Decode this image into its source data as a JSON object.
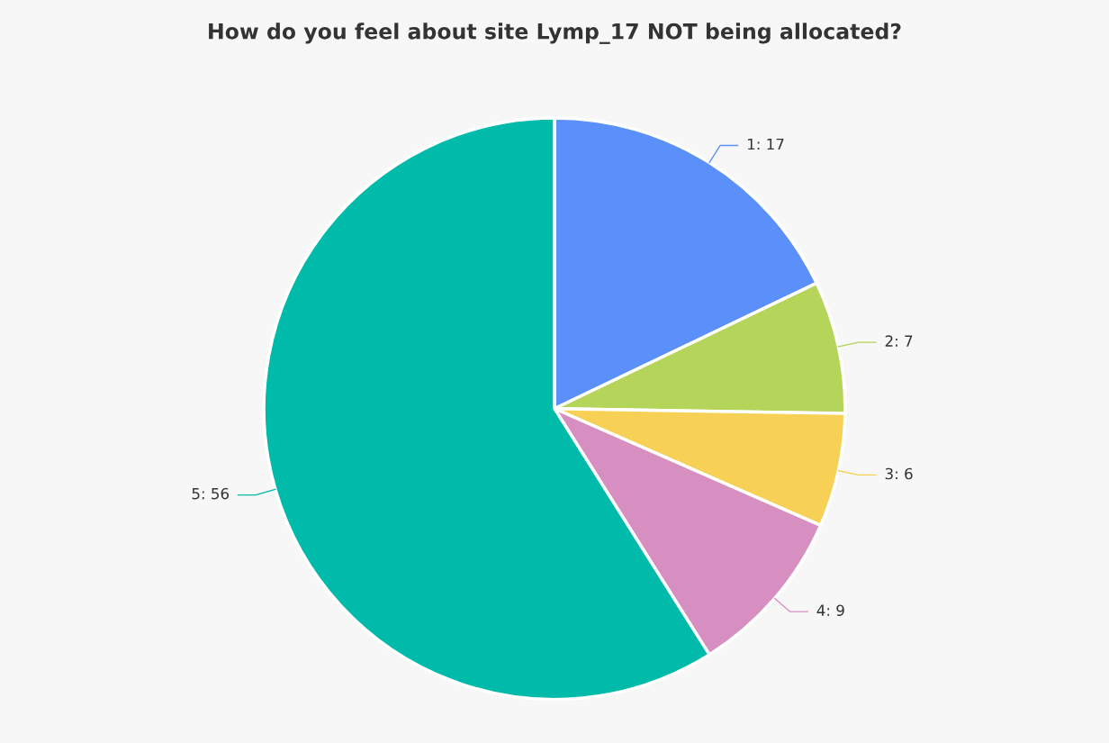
{
  "chart_data": {
    "type": "pie",
    "title": "How do you feel about site Lymp_17 NOT being allocated?",
    "values": [
      17,
      7,
      6,
      9,
      56
    ],
    "value_labels": [
      "1: 17",
      "2: 7",
      "3: 6",
      "4: 9",
      "5: 56"
    ],
    "colors": [
      "#5b8ff9",
      "#b5d55a",
      "#f6d155",
      "#d68fc0",
      "#00bba9"
    ]
  }
}
